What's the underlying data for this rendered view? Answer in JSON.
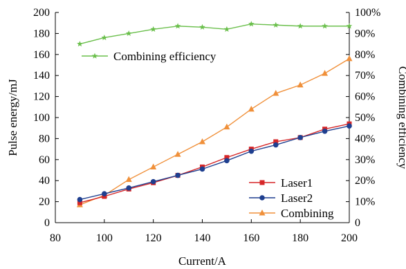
{
  "chart_data": {
    "type": "line",
    "xlabel": "Current/A",
    "ylabel": "Pulse energy/mJ",
    "y2label": "Combining efficiency",
    "xlim": [
      80,
      200
    ],
    "ylim": [
      0,
      200
    ],
    "y2lim": [
      0,
      100
    ],
    "x_ticks": [
      "80",
      "100",
      "120",
      "140",
      "160",
      "180",
      "200"
    ],
    "y_ticks": [
      "0",
      "20",
      "40",
      "60",
      "80",
      "100",
      "120",
      "140",
      "160",
      "180",
      "200"
    ],
    "y2_ticks": [
      "0",
      "10%",
      "20%",
      "30%",
      "40%",
      "50%",
      "60%",
      "70%",
      "80%",
      "90%",
      "100%"
    ],
    "grid": false,
    "x": [
      90,
      100,
      110,
      120,
      130,
      140,
      150,
      160,
      170,
      180,
      190,
      200
    ],
    "series": [
      {
        "name": "Laser1",
        "axis": "left",
        "marker": "square",
        "color": "#d62728",
        "values": [
          19,
          25,
          32,
          38,
          45,
          53,
          62,
          70,
          77,
          81,
          89,
          94
        ]
      },
      {
        "name": "Laser2",
        "axis": "left",
        "marker": "circle",
        "color": "#1f3f8f",
        "values": [
          22,
          27.5,
          33,
          39,
          45,
          51,
          59,
          68,
          74,
          81,
          87,
          92
        ]
      },
      {
        "name": "Combining",
        "axis": "left",
        "marker": "triangle",
        "color": "#f0903a",
        "values": [
          17,
          26,
          41,
          53,
          65,
          77,
          91,
          108,
          123,
          131,
          142,
          156
        ]
      },
      {
        "name": "Combining efficiency",
        "axis": "right",
        "marker": "star",
        "color": "#6abf4b",
        "values": [
          85,
          88,
          90,
          92,
          93.5,
          93,
          92,
          94.5,
          94,
          93.5,
          93.5,
          93.5
        ]
      }
    ],
    "legends": [
      {
        "position": "top-left",
        "entries": [
          "Combining efficiency"
        ]
      },
      {
        "position": "bottom-right",
        "entries": [
          "Laser1",
          "Laser2",
          "Combining"
        ]
      }
    ]
  }
}
